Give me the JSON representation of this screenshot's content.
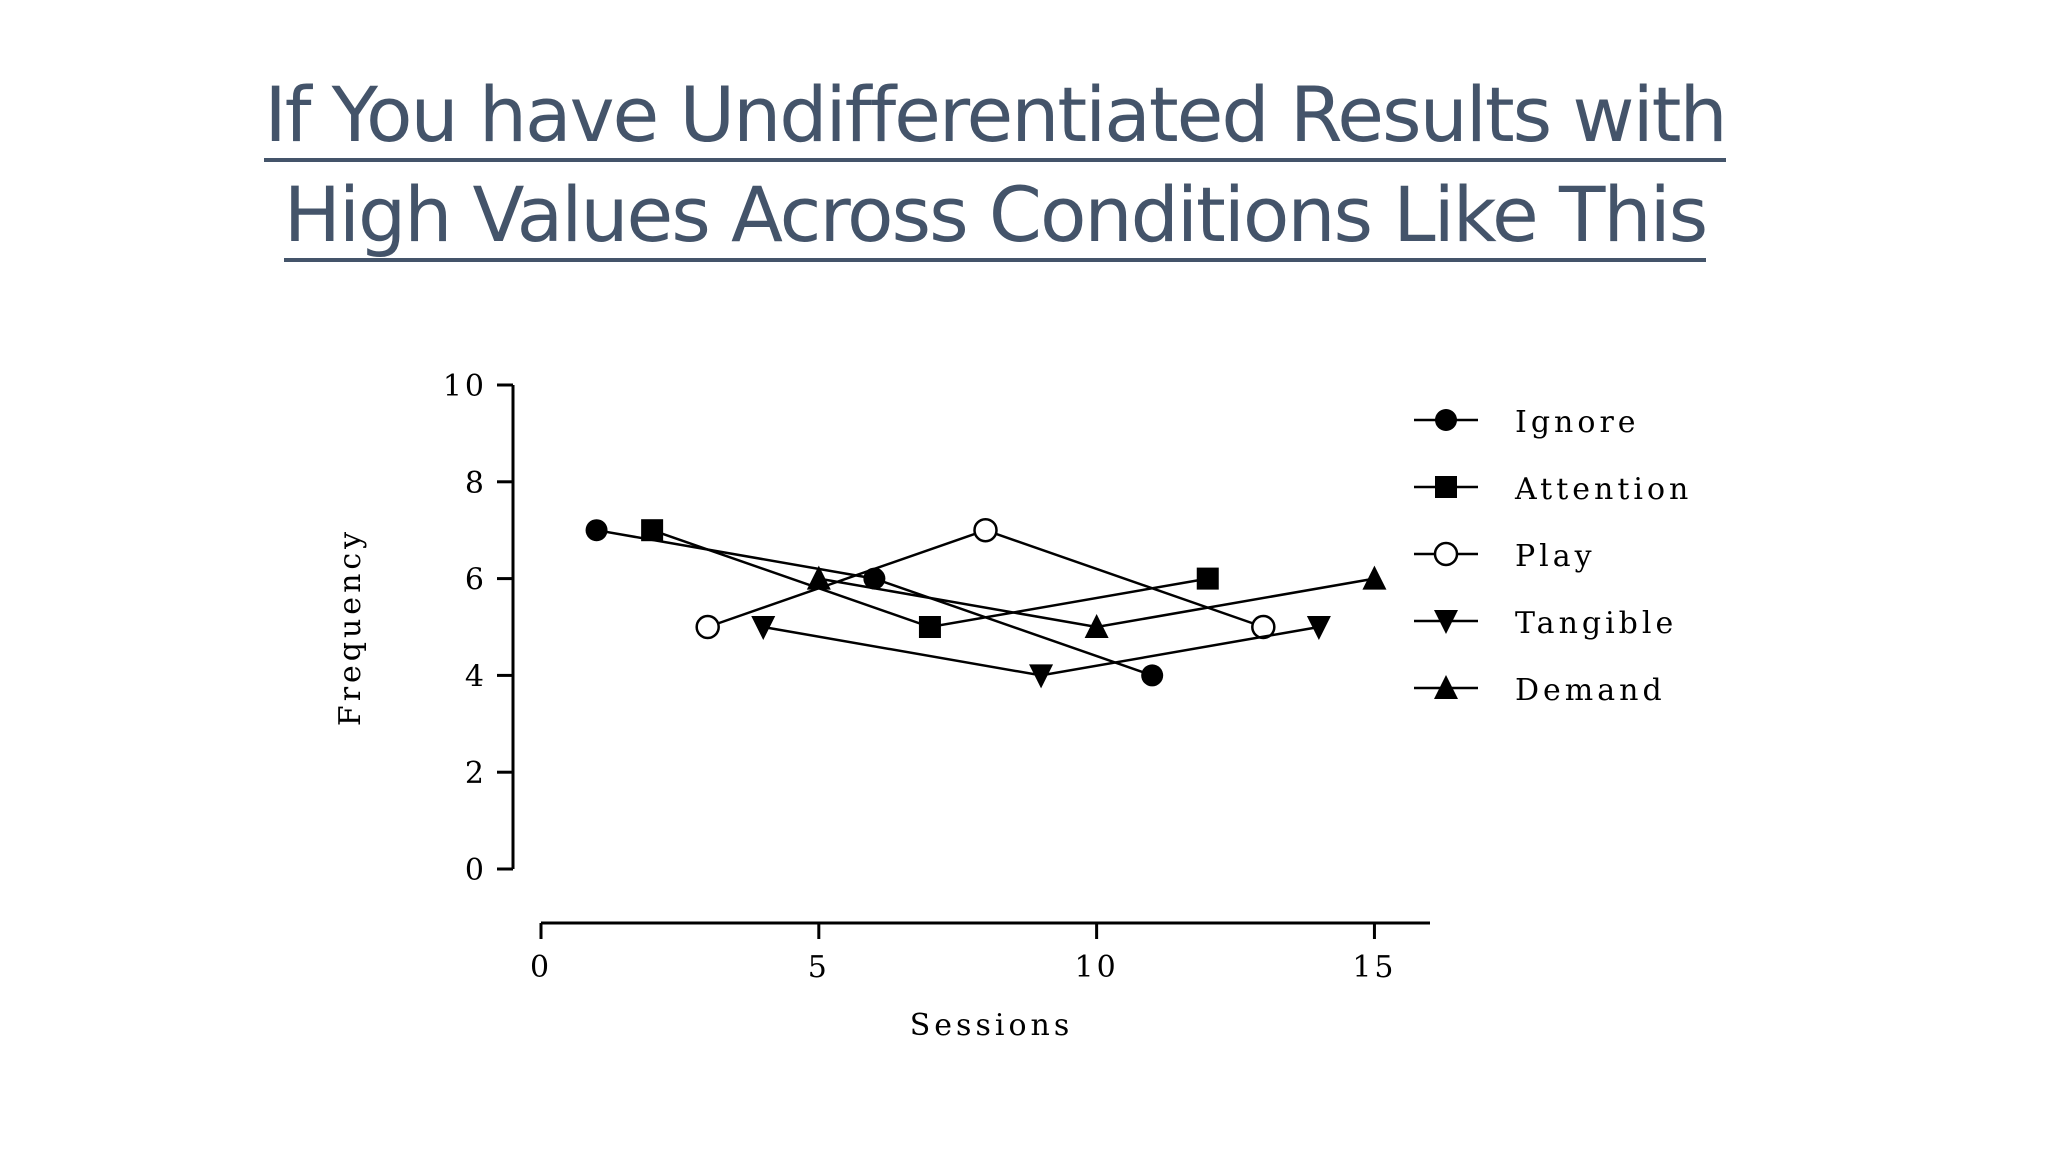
{
  "slide": {
    "title_line1": "If You have Undifferentiated Results with",
    "title_line2": "High Values Across Conditions Like This"
  },
  "chart_data": {
    "type": "line",
    "title": "",
    "xlabel": "Sessions",
    "ylabel": "Frequency",
    "xlim": [
      0,
      16
    ],
    "ylim": [
      0,
      10
    ],
    "xticks": [
      0,
      5,
      10,
      15
    ],
    "yticks": [
      0,
      2,
      4,
      6,
      8,
      10
    ],
    "xtick_labels": [
      "0",
      "5",
      "10",
      "15"
    ],
    "ytick_labels": [
      "0",
      "2",
      "4",
      "6",
      "8",
      "10"
    ],
    "grid": false,
    "legend_position": "right",
    "series": [
      {
        "name": "Ignore",
        "marker": "filled-circle",
        "x": [
          1,
          6,
          11
        ],
        "y": [
          7,
          6,
          4
        ]
      },
      {
        "name": "Attention",
        "marker": "filled-square",
        "x": [
          2,
          7,
          12
        ],
        "y": [
          7,
          5,
          6
        ]
      },
      {
        "name": "Play",
        "marker": "open-circle",
        "x": [
          3,
          8,
          13
        ],
        "y": [
          5,
          7,
          5
        ]
      },
      {
        "name": "Tangible",
        "marker": "filled-triangle-down",
        "x": [
          4,
          9,
          14
        ],
        "y": [
          5,
          4,
          5
        ]
      },
      {
        "name": "Demand",
        "marker": "filled-triangle-up",
        "x": [
          5,
          10,
          15
        ],
        "y": [
          6,
          5,
          6
        ]
      }
    ],
    "colors": {
      "line": "#000000",
      "title": "#44546a"
    }
  }
}
